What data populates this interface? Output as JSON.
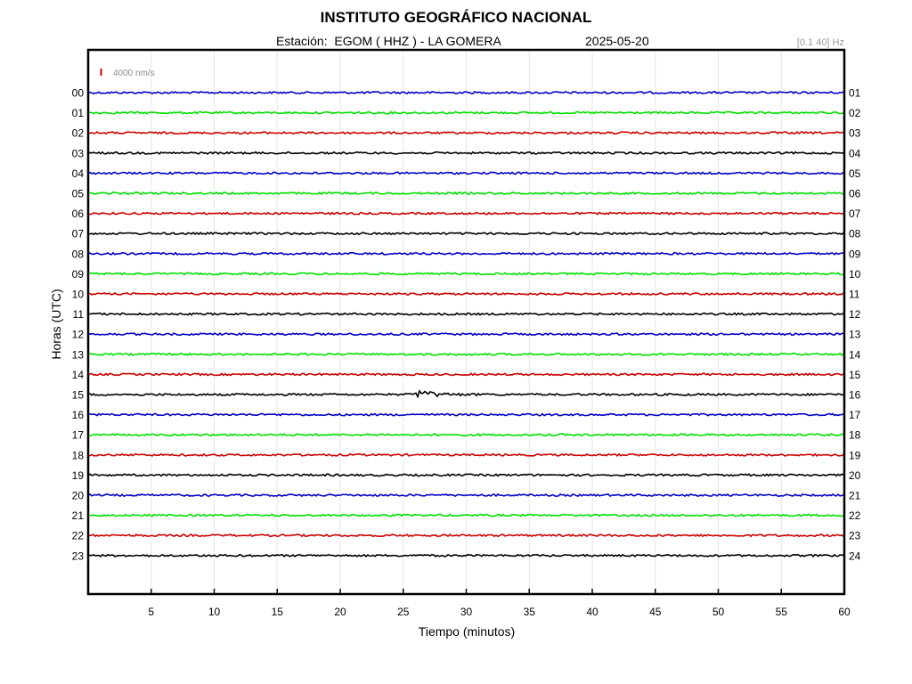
{
  "header": {
    "title": "INSTITUTO GEOGRÁFICO NACIONAL",
    "station": "Estación:  EGOM ( HHZ ) - LA GOMERA",
    "date": "2025-05-20",
    "filter": "[0.1 40] Hz"
  },
  "chart_data": {
    "type": "line",
    "title": "INSTITUTO GEOGRÁFICO NACIONAL",
    "xlabel": "Tiempo (minutos)",
    "ylabel": "Horas (UTC)",
    "xlim": [
      0,
      60
    ],
    "x_ticks": [
      "5",
      "10",
      "15",
      "20",
      "25",
      "30",
      "35",
      "40",
      "45",
      "50",
      "55",
      "60"
    ],
    "grid": "vertical",
    "scale_label": "4000 nm/s",
    "colors": [
      "#0000c8",
      "#00e000",
      "#cc0000",
      "#000000"
    ],
    "rows": [
      {
        "left": "00",
        "right": "01",
        "color": "#0000c8"
      },
      {
        "left": "01",
        "right": "02",
        "color": "#00e000"
      },
      {
        "left": "02",
        "right": "03",
        "color": "#cc0000"
      },
      {
        "left": "03",
        "right": "04",
        "color": "#000000"
      },
      {
        "left": "04",
        "right": "05",
        "color": "#0000c8"
      },
      {
        "left": "05",
        "right": "06",
        "color": "#00e000"
      },
      {
        "left": "06",
        "right": "07",
        "color": "#cc0000"
      },
      {
        "left": "07",
        "right": "08",
        "color": "#000000"
      },
      {
        "left": "08",
        "right": "09",
        "color": "#0000c8"
      },
      {
        "left": "09",
        "right": "10",
        "color": "#00e000"
      },
      {
        "left": "10",
        "right": "11",
        "color": "#cc0000"
      },
      {
        "left": "11",
        "right": "12",
        "color": "#000000"
      },
      {
        "left": "12",
        "right": "13",
        "color": "#0000c8"
      },
      {
        "left": "13",
        "right": "14",
        "color": "#00e000"
      },
      {
        "left": "14",
        "right": "15",
        "color": "#cc0000"
      },
      {
        "left": "15",
        "right": "16",
        "color": "#000000",
        "event_minute": 26.2
      },
      {
        "left": "16",
        "right": "17",
        "color": "#0000c8"
      },
      {
        "left": "17",
        "right": "18",
        "color": "#00e000"
      },
      {
        "left": "18",
        "right": "19",
        "color": "#cc0000"
      },
      {
        "left": "19",
        "right": "20",
        "color": "#000000"
      },
      {
        "left": "20",
        "right": "21",
        "color": "#0000c8"
      },
      {
        "left": "21",
        "right": "22",
        "color": "#00e000"
      },
      {
        "left": "22",
        "right": "23",
        "color": "#cc0000"
      },
      {
        "left": "23",
        "right": "24",
        "color": "#000000"
      }
    ]
  }
}
